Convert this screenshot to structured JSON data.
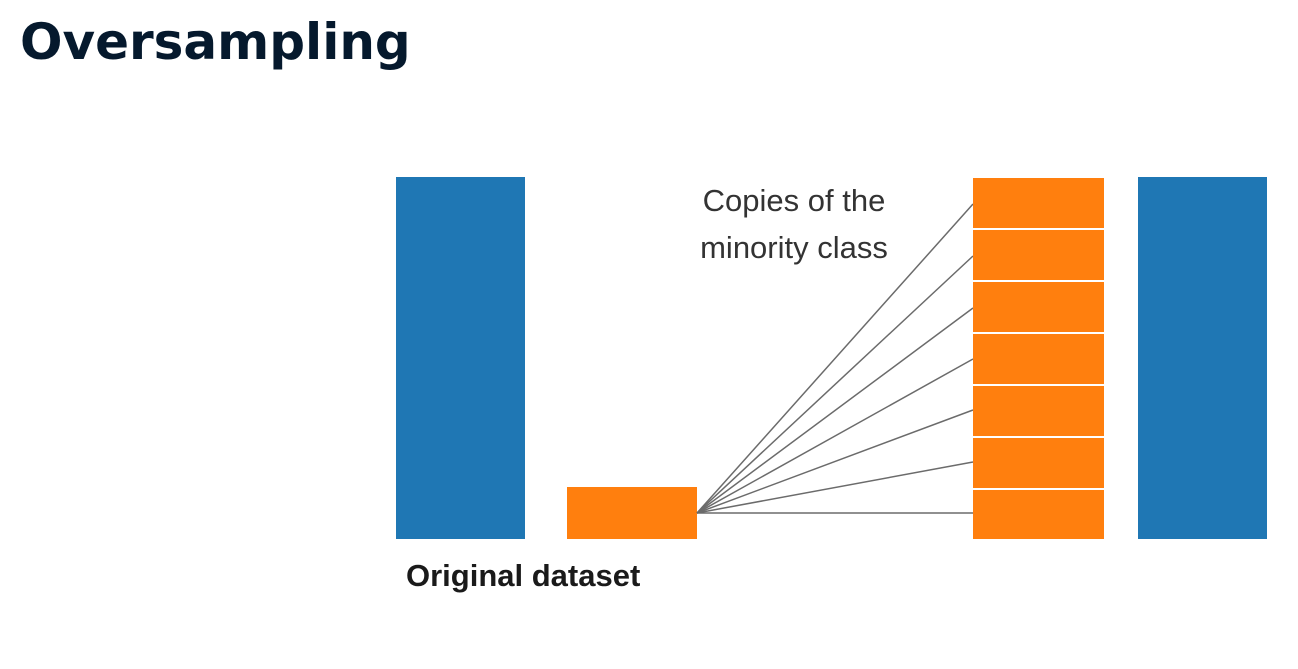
{
  "title": "Oversampling",
  "labels": {
    "copies_line1": "Copies of the",
    "copies_line2": "minority class",
    "original": "Original dataset"
  },
  "colors": {
    "majority": "#1f77b4",
    "minority": "#ff7f0e",
    "connector": "#6b6b6b",
    "title": "#05192d"
  },
  "minority_copies": 7
}
